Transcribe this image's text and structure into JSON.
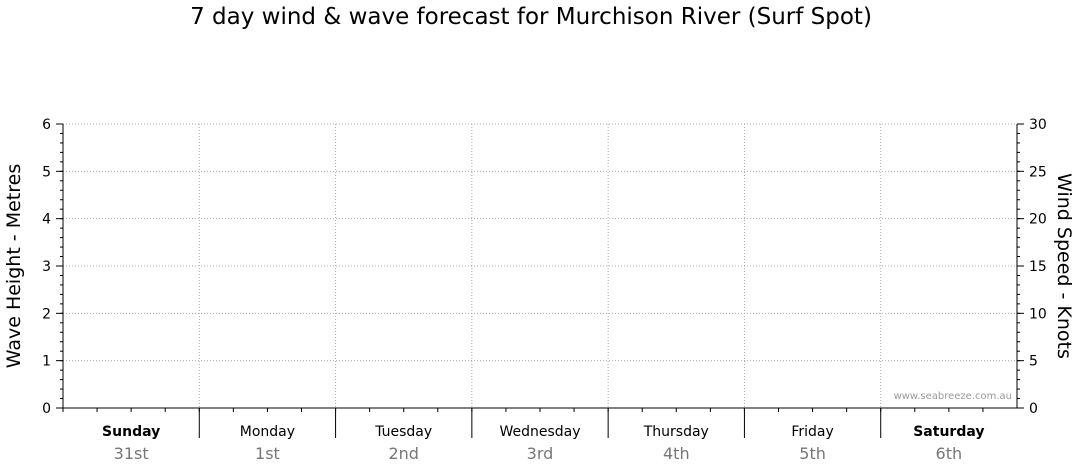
{
  "chart_data": {
    "type": "line",
    "title": "7 day wind & wave forecast for Murchison River  (Surf Spot)",
    "ylabel_left": "Wave Height - Metres",
    "ylabel_right": "Wind Speed - Knots",
    "ylim_left": [
      0,
      6
    ],
    "ylim_right": [
      0,
      30
    ],
    "yticks_left": [
      "0",
      "1",
      "2",
      "3",
      "4",
      "5",
      "6"
    ],
    "yticks_right": [
      "0",
      "5",
      "10",
      "15",
      "20",
      "25",
      "30"
    ],
    "days": [
      {
        "name": "Sunday",
        "date": "31st",
        "bold": true
      },
      {
        "name": "Monday",
        "date": "1st",
        "bold": false
      },
      {
        "name": "Tuesday",
        "date": "2nd",
        "bold": false
      },
      {
        "name": "Wednesday",
        "date": "3rd",
        "bold": false
      },
      {
        "name": "Thursday",
        "date": "4th",
        "bold": false
      },
      {
        "name": "Friday",
        "date": "5th",
        "bold": false
      },
      {
        "name": "Saturday",
        "date": "6th",
        "bold": true
      }
    ],
    "series": [],
    "grid": true
  },
  "watermark": "www.seabreeze.com.au",
  "colors": {
    "axis": "#000000",
    "grid": "#aaaaaa",
    "date_text": "#777777",
    "watermark": "#9a9a9a"
  }
}
